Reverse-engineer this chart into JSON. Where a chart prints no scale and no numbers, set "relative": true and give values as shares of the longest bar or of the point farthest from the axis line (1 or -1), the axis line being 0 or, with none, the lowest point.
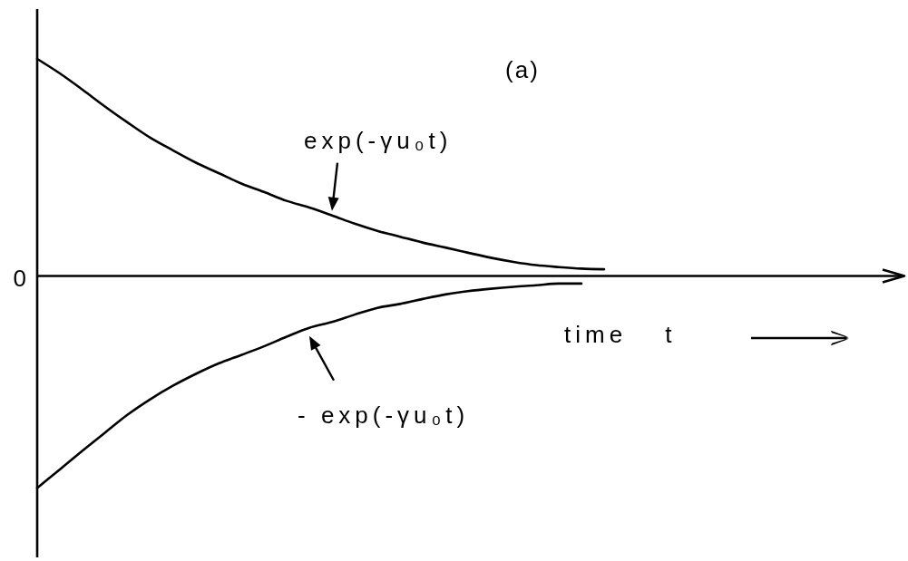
{
  "chart_data": {
    "type": "line",
    "relative": true,
    "line_style": "solid",
    "categories": [
      null,
      null,
      null,
      null,
      null,
      null,
      null,
      null,
      null,
      null,
      null,
      null,
      null,
      null,
      null,
      null,
      null,
      null,
      null,
      null,
      null,
      null,
      null,
      null,
      null,
      null
    ],
    "series": [
      {
        "name": "exp(-γu₀t)",
        "color": "#000000",
        "values": [
          1,
          0.933,
          0.858,
          0.78,
          0.706,
          0.636,
          0.578,
          0.522,
          0.474,
          0.426,
          0.387,
          0.346,
          0.315,
          0.279,
          0.241,
          0.208,
          0.181,
          0.154,
          0.131,
          0.107,
          0.084,
          0.065,
          0.05,
          0.041,
          0.034,
          0.031
        ]
      },
      {
        "name": "- exp(-γu₀t)",
        "color": "#000000",
        "values": [
          -0.977,
          -0.891,
          -0.805,
          -0.721,
          -0.638,
          -0.567,
          -0.505,
          -0.451,
          -0.403,
          -0.364,
          -0.324,
          -0.28,
          -0.239,
          -0.212,
          -0.178,
          -0.147,
          -0.129,
          -0.106,
          -0.085,
          -0.07,
          -0.059,
          -0.05,
          -0.043,
          -0.035,
          -0.035,
          null
        ]
      }
    ],
    "xlabel": "time t",
    "annotations": [
      "(a)",
      "0"
    ]
  }
}
